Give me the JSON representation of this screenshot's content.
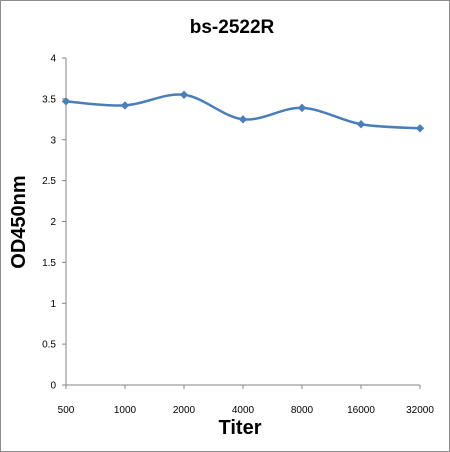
{
  "chart_data": {
    "type": "line",
    "title": "bs-2522R",
    "xlabel": "Titer",
    "ylabel": "OD450nm",
    "categories": [
      "500",
      "1000",
      "2000",
      "4000",
      "8000",
      "16000",
      "32000"
    ],
    "series": [
      {
        "values": [
          3.47,
          3.42,
          3.55,
          3.25,
          3.39,
          3.19,
          3.14
        ],
        "color": "#4a7ebb"
      }
    ],
    "ylim": [
      0,
      4
    ],
    "yticks": [
      "0",
      "0.5",
      "1",
      "1.5",
      "2",
      "2.5",
      "3",
      "3.5",
      "4"
    ],
    "grid": false,
    "marker": "diamond",
    "smooth": true
  }
}
